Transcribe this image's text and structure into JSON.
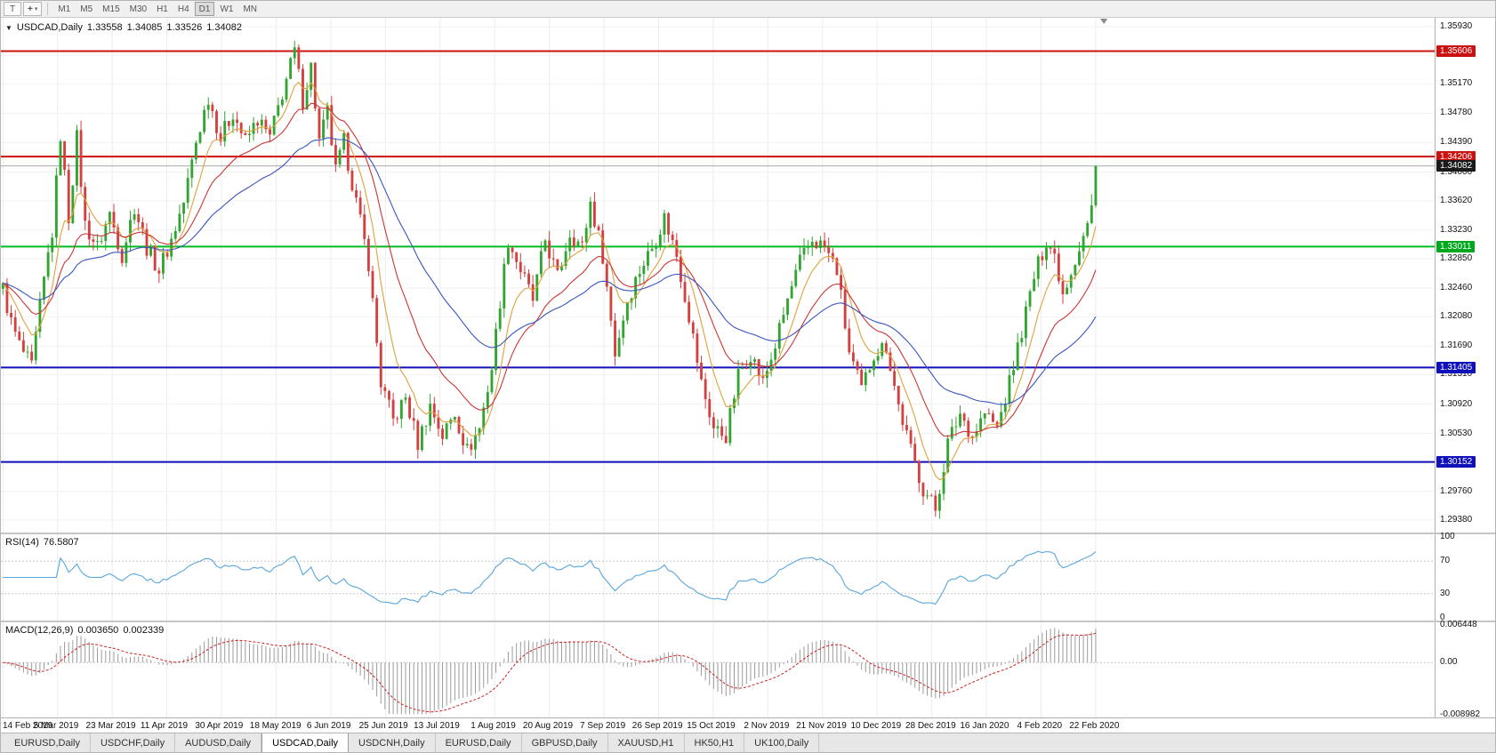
{
  "toolbar": {
    "cursor_tool_glyph": "T",
    "crosshair_glyph": "+",
    "dropdown_glyph": "▾",
    "timeframes": [
      "M1",
      "M5",
      "M15",
      "M30",
      "H1",
      "H4",
      "D1",
      "W1",
      "MN"
    ],
    "active_timeframe": "D1"
  },
  "chart_header": {
    "collapse_glyph": "▼",
    "symbol": "USDCAD,Daily",
    "open": "1.33558",
    "high": "1.34085",
    "low": "1.33526",
    "close": "1.34082"
  },
  "rsi_panel": {
    "label": "RSI(14)",
    "value": "76.5807",
    "axis_labels": [
      "100",
      "70",
      "30",
      "0"
    ],
    "guide_levels": [
      70,
      30
    ]
  },
  "macd_panel": {
    "label": "MACD(12,26,9)",
    "main_value": "0.003650",
    "signal_value": "0.002339",
    "axis_labels": [
      "0.006448",
      "0.00",
      "-0.008982"
    ]
  },
  "price_axis": {
    "labels": [
      "1.35930",
      "1.35550",
      "1.35170",
      "1.34780",
      "1.34390",
      "1.34000",
      "1.33620",
      "1.33230",
      "1.32850",
      "1.32460",
      "1.32080",
      "1.31690",
      "1.31310",
      "1.30920",
      "1.30530",
      "1.30140",
      "1.29760",
      "1.29380"
    ]
  },
  "date_axis": {
    "labels": [
      "14 Feb 2019",
      "5 Mar 2019",
      "23 Mar 2019",
      "11 Apr 2019",
      "30 Apr 2019",
      "18 May 2019",
      "6 Jun 2019",
      "25 Jun 2019",
      "13 Jul 2019",
      "1 Aug 2019",
      "20 Aug 2019",
      "7 Sep 2019",
      "26 Sep 2019",
      "15 Oct 2019",
      "2 Nov 2019",
      "21 Nov 2019",
      "10 Dec 2019",
      "28 Dec 2019",
      "16 Jan 2020",
      "4 Feb 2020",
      "22 Feb 2020"
    ]
  },
  "tabs": {
    "items": [
      "EURUSD,Daily",
      "USDCHF,Daily",
      "AUDUSD,Daily",
      "USDCAD,Daily",
      "USDCNH,Daily",
      "EURUSD,Daily",
      "GBPUSD,Daily",
      "XAUUSD,H1",
      "HK50,H1",
      "UK100,Daily"
    ],
    "active_index": 3
  },
  "chart_data": {
    "type": "candlestick",
    "symbol": "USDCAD",
    "timeframe": "Daily",
    "num_candles": 267,
    "right_margin_slots": 82,
    "jitter": 0.0012,
    "price_scale": {
      "max": 1.3593,
      "min": 1.2938
    },
    "last_ohlc": {
      "o": 1.33558,
      "h": 1.34085,
      "l": 1.33526,
      "c": 1.34082
    },
    "price_path": [
      [
        0,
        1.3245
      ],
      [
        2,
        1.32
      ],
      [
        4,
        1.317
      ],
      [
        7,
        1.314
      ],
      [
        9,
        1.322
      ],
      [
        11,
        1.329
      ],
      [
        12,
        1.332
      ],
      [
        14,
        1.345
      ],
      [
        16,
        1.334
      ],
      [
        18,
        1.3445
      ],
      [
        20,
        1.333
      ],
      [
        23,
        1.33
      ],
      [
        26,
        1.3345
      ],
      [
        29,
        1.329
      ],
      [
        32,
        1.3355
      ],
      [
        35,
        1.33
      ],
      [
        38,
        1.327
      ],
      [
        41,
        1.331
      ],
      [
        44,
        1.336
      ],
      [
        47,
        1.344
      ],
      [
        50,
        1.35
      ],
      [
        53,
        1.3445
      ],
      [
        56,
        1.348
      ],
      [
        59,
        1.344
      ],
      [
        62,
        1.347
      ],
      [
        65,
        1.3445
      ],
      [
        68,
        1.3505
      ],
      [
        71,
        1.356
      ],
      [
        73,
        1.3495
      ],
      [
        75,
        1.354
      ],
      [
        77,
        1.344
      ],
      [
        79,
        1.348
      ],
      [
        81,
        1.34
      ],
      [
        83,
        1.344
      ],
      [
        86,
        1.336
      ],
      [
        89,
        1.328
      ],
      [
        92,
        1.312
      ],
      [
        95,
        1.307
      ],
      [
        98,
        1.31
      ],
      [
        101,
        1.304
      ],
      [
        104,
        1.309
      ],
      [
        107,
        1.305
      ],
      [
        110,
        1.308
      ],
      [
        113,
        1.303
      ],
      [
        116,
        1.306
      ],
      [
        119,
        1.314
      ],
      [
        121,
        1.323
      ],
      [
        123,
        1.331
      ],
      [
        126,
        1.327
      ],
      [
        129,
        1.323
      ],
      [
        132,
        1.331
      ],
      [
        135,
        1.326
      ],
      [
        138,
        1.332
      ],
      [
        141,
        1.33
      ],
      [
        143,
        1.336
      ],
      [
        146,
        1.329
      ],
      [
        149,
        1.316
      ],
      [
        152,
        1.323
      ],
      [
        155,
        1.327
      ],
      [
        158,
        1.33
      ],
      [
        161,
        1.334
      ],
      [
        164,
        1.329
      ],
      [
        167,
        1.321
      ],
      [
        170,
        1.312
      ],
      [
        173,
        1.306
      ],
      [
        176,
        1.305
      ],
      [
        179,
        1.313
      ],
      [
        182,
        1.316
      ],
      [
        185,
        1.312
      ],
      [
        188,
        1.317
      ],
      [
        191,
        1.323
      ],
      [
        194,
        1.328
      ],
      [
        197,
        1.331
      ],
      [
        200,
        1.33
      ],
      [
        203,
        1.327
      ],
      [
        206,
        1.316
      ],
      [
        209,
        1.311
      ],
      [
        212,
        1.316
      ],
      [
        215,
        1.317
      ],
      [
        218,
        1.309
      ],
      [
        221,
        1.303
      ],
      [
        224,
        1.298
      ],
      [
        227,
        1.2952
      ],
      [
        230,
        1.304
      ],
      [
        233,
        1.308
      ],
      [
        236,
        1.305
      ],
      [
        239,
        1.308
      ],
      [
        242,
        1.306
      ],
      [
        245,
        1.312
      ],
      [
        248,
        1.319
      ],
      [
        251,
        1.326
      ],
      [
        254,
        1.331
      ],
      [
        256,
        1.329
      ],
      [
        258,
        1.324
      ],
      [
        260,
        1.327
      ],
      [
        262,
        1.33
      ],
      [
        264,
        1.333
      ],
      [
        265,
        1.33558
      ],
      [
        266,
        1.34082
      ]
    ],
    "levels": [
      {
        "price": 1.35606,
        "label": "1.35606",
        "color": "#cc1111",
        "badge": "#cc1111",
        "width": 2
      },
      {
        "price": 1.34206,
        "label": "1.34206",
        "color": "#cc1111",
        "badge": "#cc1111",
        "width": 2
      },
      {
        "price": 1.34082,
        "label": "1.34082",
        "color": "#a8a8a8",
        "badge": "#1a1a1a",
        "width": 1
      },
      {
        "price": 1.33011,
        "label": "1.33011",
        "color": "#00bb22",
        "badge": "#00a81e",
        "width": 2
      },
      {
        "price": 1.31405,
        "label": "1.31405",
        "color": "#1111bb",
        "badge": "#1111bb",
        "width": 2
      },
      {
        "price": 1.30152,
        "label": "1.30152",
        "color": "#1111bb",
        "badge": "#1111bb",
        "width": 2
      }
    ],
    "moving_averages": [
      {
        "period": 8,
        "color": "#dfa13d",
        "name": "fast-ma"
      },
      {
        "period": 20,
        "color": "#c93636",
        "name": "mid-ma"
      },
      {
        "period": 45,
        "color": "#3a55c0",
        "name": "slow-ma"
      }
    ],
    "colors": {
      "up": "#31a431",
      "down": "#d43f3f",
      "rsi": "#58a6dc",
      "macd_hist": "#9a9a9a",
      "macd_signal": "#cc2222",
      "grid": "#ececec"
    },
    "rsi": {
      "period": 14
    },
    "macd": {
      "fast": 12,
      "slow": 26,
      "signal": 9,
      "axis": {
        "max": 0.006448,
        "min": -0.008982
      }
    }
  }
}
